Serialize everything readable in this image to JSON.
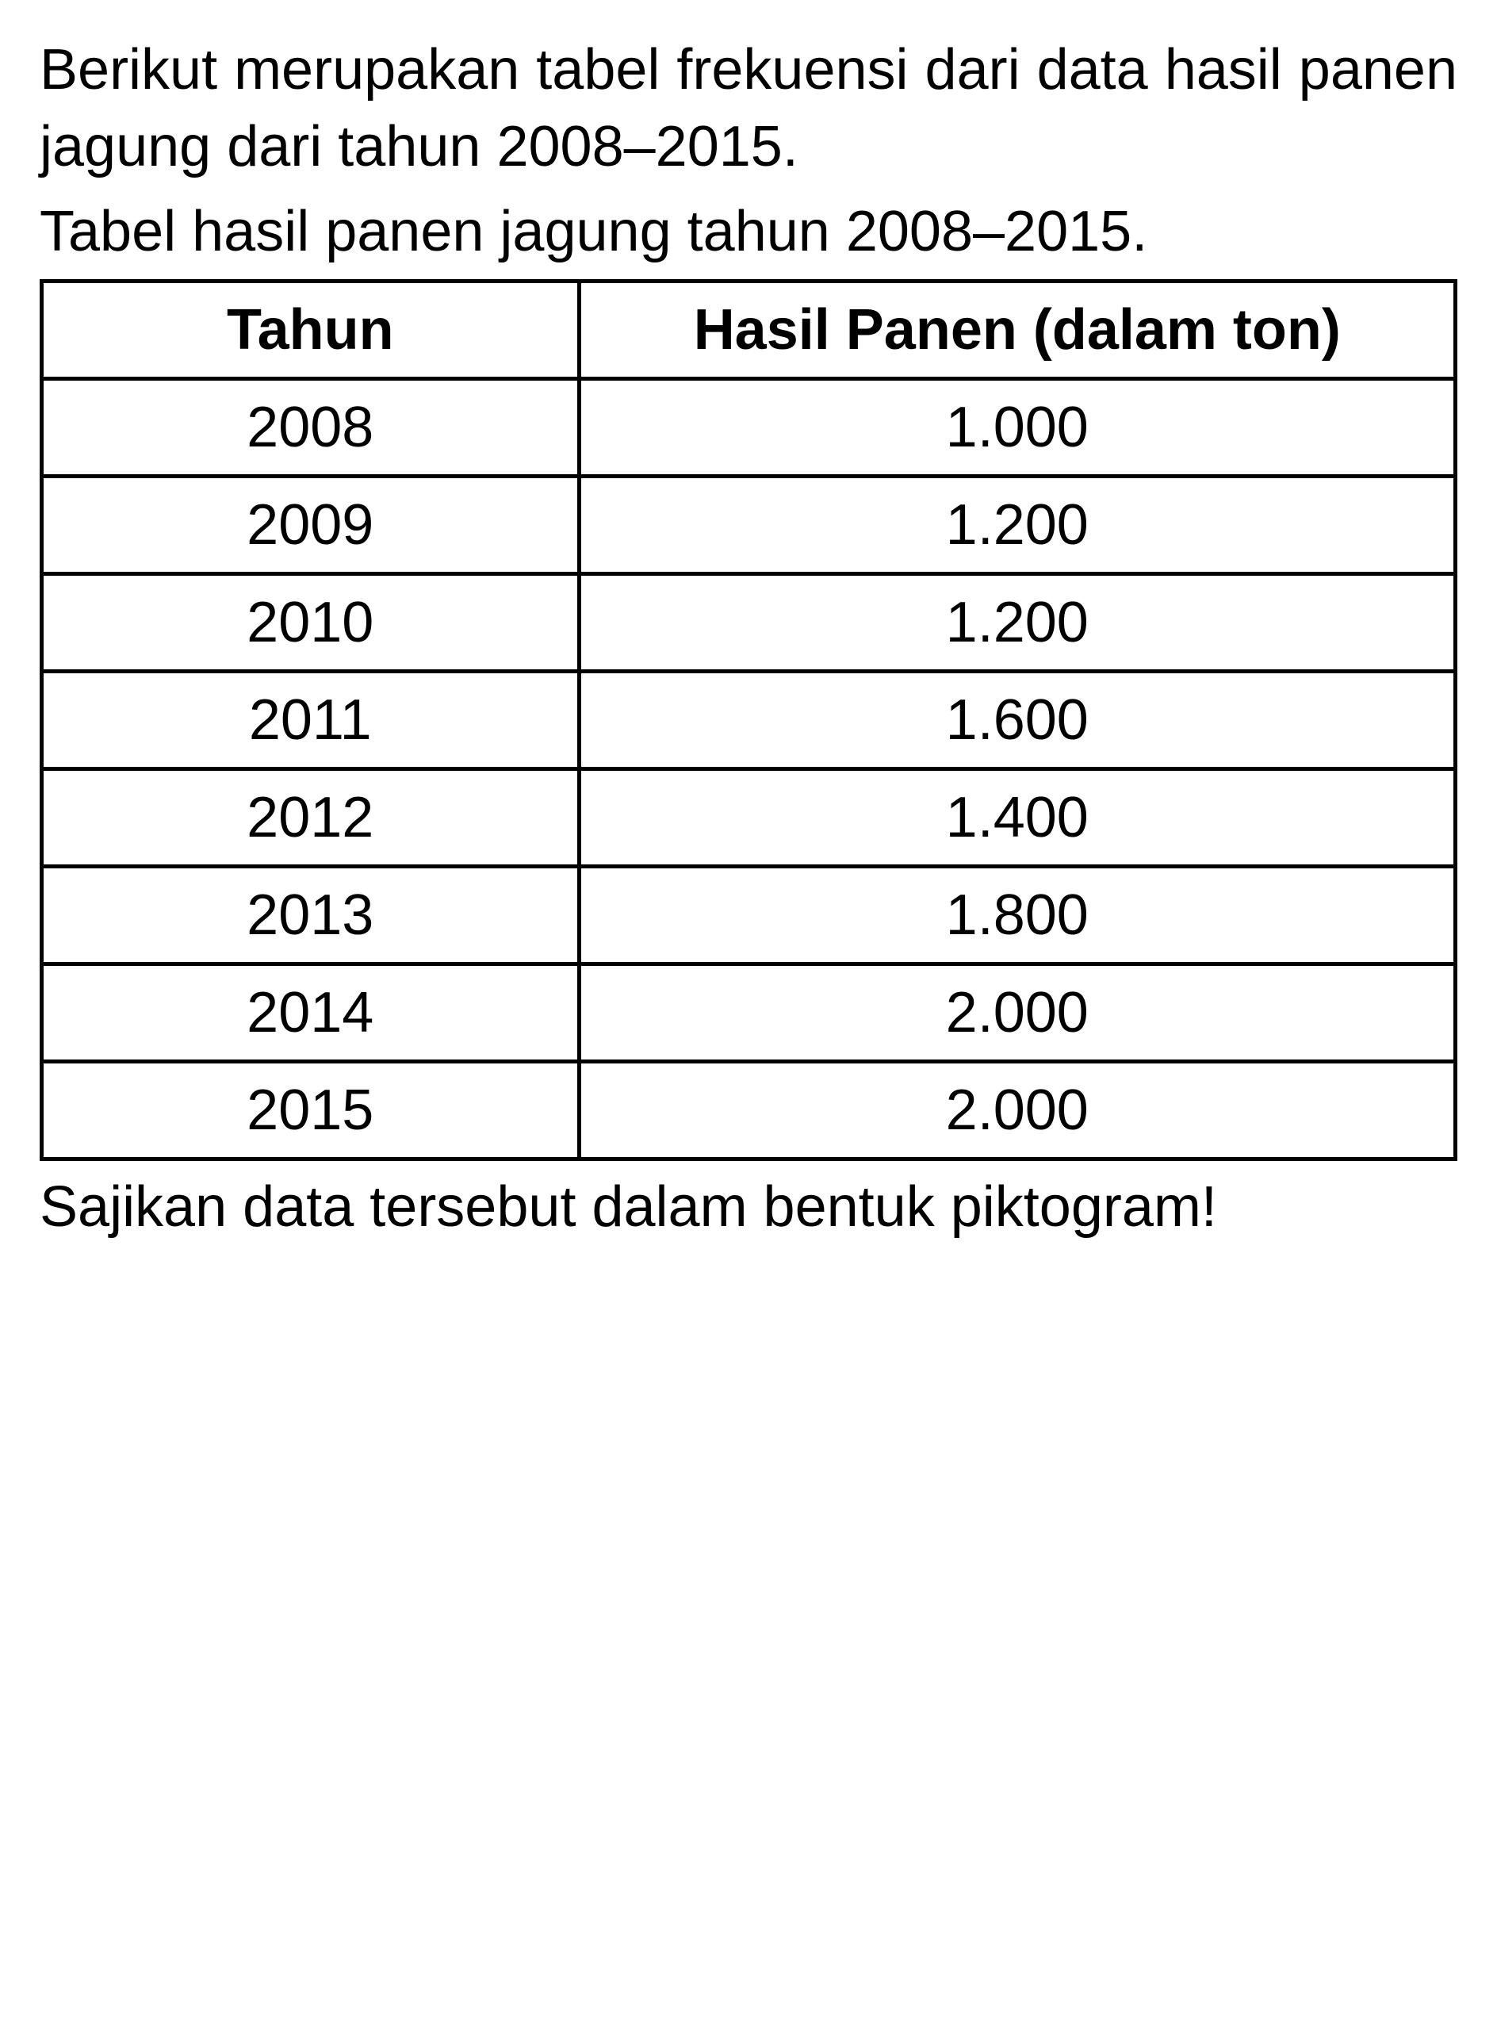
{
  "intro_text": "Berikut merupakan tabel frekuensi dari data hasil panen jagung dari tahun 2008–2015.",
  "table_caption": "Tabel hasil panen jagung tahun 2008–2015.",
  "table": {
    "type": "table",
    "columns": [
      {
        "label": "Tahun",
        "align": "center"
      },
      {
        "label": "Hasil Panen (dalam ton)",
        "align": "center"
      }
    ],
    "rows": [
      {
        "year": "2008",
        "value": "1.000"
      },
      {
        "year": "2009",
        "value": "1.200"
      },
      {
        "year": "2010",
        "value": "1.200"
      },
      {
        "year": "2011",
        "value": "1.600"
      },
      {
        "year": "2012",
        "value": "1.400"
      },
      {
        "year": "2013",
        "value": "1.800"
      },
      {
        "year": "2014",
        "value": "2.000"
      },
      {
        "year": "2015",
        "value": "2.000"
      }
    ],
    "border_color": "#000000",
    "border_width": 5,
    "background_color": "#ffffff",
    "header_font_weight": 700,
    "cell_font_size": 72,
    "text_color": "#000000"
  },
  "closing_text": "Sajikan data tersebut dalam bentuk piktogram!"
}
